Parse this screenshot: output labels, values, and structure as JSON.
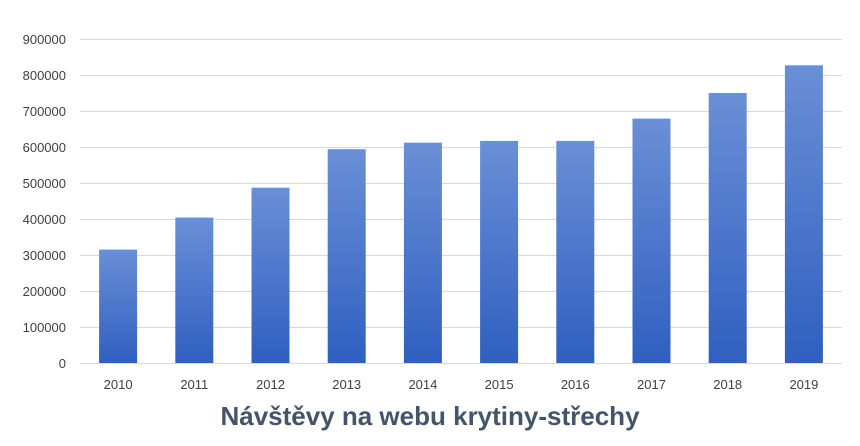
{
  "chart_data": {
    "type": "bar",
    "title": "Návštěvy na webu krytiny-střechy",
    "xlabel": "",
    "ylabel": "",
    "categories": [
      "2010",
      "2011",
      "2012",
      "2013",
      "2014",
      "2015",
      "2016",
      "2017",
      "2018",
      "2019"
    ],
    "values": [
      315000,
      404000,
      487000,
      594000,
      612000,
      617000,
      617000,
      679000,
      750000,
      827000
    ],
    "ylim": [
      0,
      900000
    ],
    "yticks": [
      0,
      100000,
      200000,
      300000,
      400000,
      500000,
      600000,
      700000,
      800000,
      900000
    ],
    "ytick_labels": [
      "0",
      "100000",
      "200000",
      "300000",
      "400000",
      "500000",
      "600000",
      "700000",
      "800000",
      "900000"
    ],
    "grid": true,
    "legend": "none",
    "colors": {
      "bar_top": "#6a8fd6",
      "bar_bottom": "#2f5fc0",
      "grid": "#d9d9d9",
      "title": "#44546a"
    }
  }
}
